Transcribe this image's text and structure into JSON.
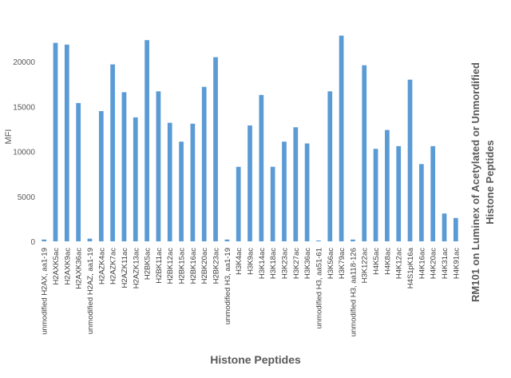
{
  "chart_data": {
    "type": "bar",
    "title": "",
    "xlabel": "Histone Peptides",
    "ylabel": "MFI",
    "side_title_line1": "RM101 on Luminex of Acetylated or Unmordified",
    "side_title_line2": "Histone Peptides",
    "ylim": [
      0,
      25000
    ],
    "yticks": [
      0,
      5000,
      10000,
      15000,
      20000
    ],
    "grid": false,
    "legend": "none",
    "bar_color": "#5b9bd5",
    "categories": [
      "unmodified H2AX, aa1-19",
      "H2AXK5ac",
      "H2AXK9ac",
      "H2AXK36ac",
      "unmodified H2AZ, aa1-19",
      "H2AZK4ac",
      "H2AZK7ac",
      "H2AZK11ac",
      "H2AZK13ac",
      "H2BK5ac",
      "H2BK11ac",
      "H2BK12ac",
      "H2BK15ac",
      "H2BK16ac",
      "H2BK20ac",
      "H2BK23ac",
      "unmodified H3, aa1-19",
      "H3K4ac",
      "H3K9ac",
      "H3K14ac",
      "H3K18ac",
      "H3K23ac",
      "H3K27ac",
      "H3K36ac",
      "unmodified H3, aa51-61",
      "H3K56ac",
      "H3K79ac",
      "unmodified H3, aa118-126",
      "H3K122ac",
      "H4K5ac",
      "H4K8ac",
      "H4K12ac",
      "H4S1pK16a",
      "H4K16ac",
      "H4K20ac",
      "H4K31ac",
      "H4K91ac"
    ],
    "values": [
      200,
      22100,
      21900,
      15400,
      300,
      14500,
      19700,
      16600,
      13800,
      22400,
      16700,
      13200,
      11100,
      13100,
      17200,
      20500,
      200,
      8300,
      12900,
      16300,
      8300,
      11100,
      12700,
      10900,
      100,
      16700,
      22900,
      200,
      19600,
      10300,
      12400,
      10600,
      18000,
      8600,
      10600,
      3100,
      2600
    ]
  }
}
